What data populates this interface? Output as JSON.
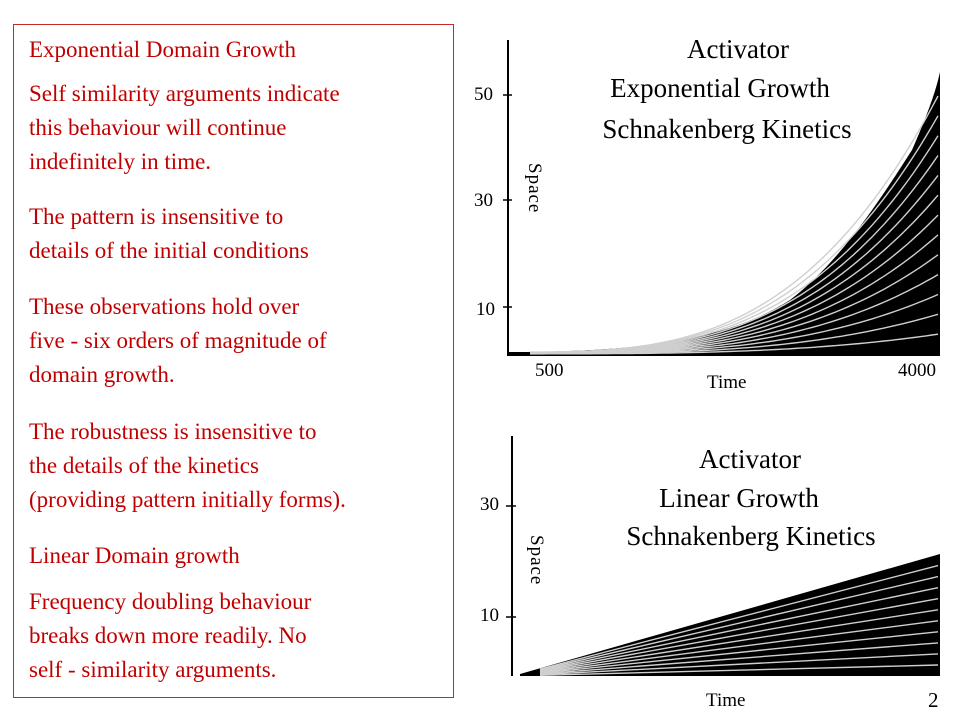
{
  "text_panel": {
    "heading_exponential": "Exponential Domain Growth",
    "para_self_similarity": "Self similarity arguments indicate\nthis behaviour will continue\nindefinitely in time.",
    "para_insensitive_initial": "The pattern is insensitive to\ndetails of the initial conditions",
    "para_orders_magnitude": "These observations hold over\nfive - six orders of magnitude of\ndomain growth.",
    "para_robustness": "The robustness is insensitive to\nthe details of the kinetics\n(providing pattern initially forms).",
    "heading_linear": "Linear Domain growth",
    "para_frequency_doubling": "Frequency doubling behaviour\nbreaks down more readily. No\nself - similarity arguments."
  },
  "top_figure": {
    "title_line1": "Activator",
    "title_line2": "Exponential Growth",
    "title_line3": "Schnakenberg Kinetics",
    "y_label": "Space",
    "y_ticks": [
      "50",
      "30",
      "10"
    ],
    "x_label": "Time",
    "x_tick_left": "500",
    "x_tick_right": "4000"
  },
  "bottom_figure": {
    "title_line1": "Activator",
    "title_line2": "Linear Growth",
    "title_line3": "Schnakenberg Kinetics",
    "y_label": "Space",
    "y_ticks": [
      "30",
      "10"
    ],
    "x_label": "Time"
  },
  "page_number": "2",
  "colors": {
    "text_red": "#c00000",
    "border_red": "#c42a2a",
    "pattern_black": "#000000"
  }
}
